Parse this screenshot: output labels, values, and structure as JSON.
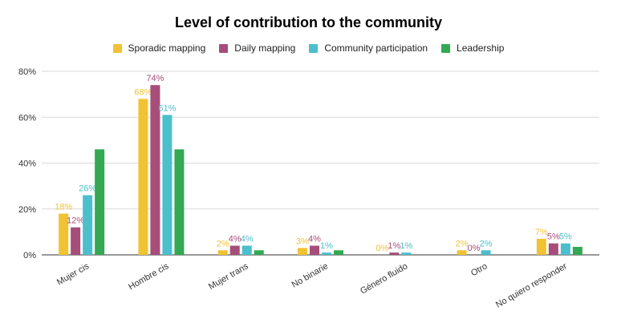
{
  "chart_data": {
    "type": "bar",
    "title": "Level of contribution to the community",
    "xlabel": "",
    "ylabel": "",
    "categories": [
      "Mujer cis",
      "Hombre cis",
      "Mujer trans",
      "No binarie",
      "Género fluido",
      "Otro",
      "No quiero responder"
    ],
    "ylim": [
      0,
      80
    ],
    "yticks": [
      0,
      20,
      40,
      60,
      80
    ],
    "ytick_labels": [
      "0%",
      "20%",
      "40%",
      "60%",
      "80%"
    ],
    "grid": true,
    "legend_position": "top",
    "series": [
      {
        "name": "Sporadic mapping",
        "color": "#f1c232",
        "values": [
          18,
          68,
          2,
          3,
          0,
          2,
          7
        ],
        "labels": [
          "18%",
          "68%",
          "2%",
          "3%",
          "0%",
          "2%",
          "7%"
        ]
      },
      {
        "name": "Daily mapping",
        "color": "#a64d79",
        "values": [
          12,
          74,
          4,
          4,
          1,
          0,
          5
        ],
        "labels": [
          "12%",
          "74%",
          "4%",
          "4%",
          "1%",
          "0%",
          "5%"
        ]
      },
      {
        "name": "Community participation",
        "color": "#4bbfcb",
        "values": [
          26,
          61,
          4,
          1,
          1,
          2,
          5
        ],
        "labels": [
          "26%",
          "61%",
          "4%",
          "1%",
          "1%",
          "2%",
          "5%"
        ]
      },
      {
        "name": "Leadership",
        "color": "#34a853",
        "values": [
          46,
          46,
          2,
          2,
          0,
          0,
          3.5
        ],
        "labels": [
          "",
          "",
          "",
          "",
          "",
          "",
          ""
        ]
      }
    ]
  }
}
